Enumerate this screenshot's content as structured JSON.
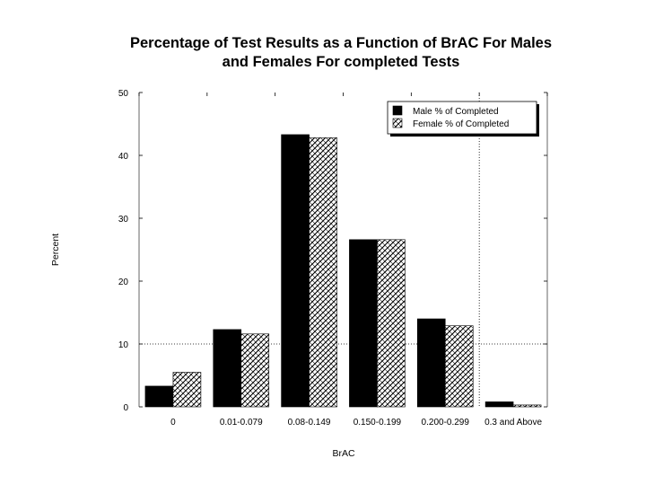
{
  "chart_data": {
    "type": "bar",
    "title": "Percentage of Test Results as a Function of BrAC For Males\nand Females For completed Tests",
    "xlabel": "BrAC",
    "ylabel": "Percent",
    "ylim": [
      0,
      50
    ],
    "yticks": [
      "0",
      "10",
      "20",
      "30",
      "40",
      "50"
    ],
    "categories": [
      "0",
      "0.01-0.079",
      "0.08-0.149",
      "0.150-0.199",
      "0.200-0.299",
      "0.3 and Above"
    ],
    "series": [
      {
        "name": "Male % of Completed",
        "values": [
          3.3,
          12.3,
          43.3,
          26.6,
          14.0,
          0.8
        ]
      },
      {
        "name": "Female % of Completed",
        "values": [
          5.5,
          11.6,
          42.8,
          26.6,
          12.9,
          0.3
        ]
      }
    ],
    "legend_position": "top-right",
    "grid": "dotted reference lines at y=10 and x after last-but-one category",
    "colors": {
      "male": "#000000",
      "female_pattern": "#000000"
    }
  }
}
